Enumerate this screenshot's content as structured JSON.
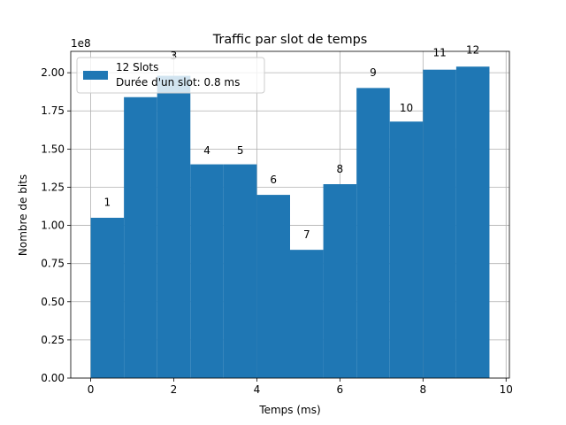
{
  "chart_data": {
    "type": "bar",
    "title": "Traffic par slot de temps",
    "xlabel": "Temps (ms)",
    "ylabel": "Nombre de bits",
    "y_scale_label": "1e8",
    "xlim": [
      -0.48,
      10.08
    ],
    "ylim": [
      0,
      2.14
    ],
    "x_ticks": [
      0,
      2,
      4,
      6,
      8,
      10
    ],
    "x_tick_labels": [
      "0",
      "2",
      "4",
      "6",
      "8",
      "10"
    ],
    "y_ticks": [
      0,
      0.25,
      0.5,
      0.75,
      1.0,
      1.25,
      1.5,
      1.75,
      2.0
    ],
    "y_tick_labels": [
      "0.00",
      "0.25",
      "0.50",
      "0.75",
      "1.00",
      "1.25",
      "1.50",
      "1.75",
      "2.00"
    ],
    "bar_width": 0.8,
    "bar_color": "#1f77b4",
    "grid": true,
    "legend": {
      "placement": "top-left",
      "entries": [
        "12 Slots",
        "Durée d'un slot: 0.8 ms"
      ]
    },
    "series": [
      {
        "values": [
          1.05,
          1.84,
          1.98,
          1.4,
          1.4,
          1.2,
          0.84,
          1.27,
          1.9,
          1.68,
          2.02,
          2.04
        ]
      }
    ],
    "x_starts": [
      0.0,
      0.8,
      1.6,
      2.4,
      3.2,
      4.0,
      4.8,
      5.6,
      6.4,
      7.2,
      8.0,
      8.8
    ],
    "annotations": [
      {
        "text": "1",
        "x": 0.4,
        "y": 1.15
      },
      {
        "text": "3",
        "x": 2.0,
        "y": 2.11
      },
      {
        "text": "4",
        "x": 2.8,
        "y": 1.49
      },
      {
        "text": "5",
        "x": 3.6,
        "y": 1.49
      },
      {
        "text": "6",
        "x": 4.4,
        "y": 1.3
      },
      {
        "text": "7",
        "x": 5.2,
        "y": 0.94
      },
      {
        "text": "8",
        "x": 6.0,
        "y": 1.37
      },
      {
        "text": "9",
        "x": 6.8,
        "y": 2.0
      },
      {
        "text": "10",
        "x": 7.6,
        "y": 1.77
      },
      {
        "text": "11",
        "x": 8.4,
        "y": 2.13
      },
      {
        "text": "12",
        "x": 9.2,
        "y": 2.15
      }
    ]
  }
}
